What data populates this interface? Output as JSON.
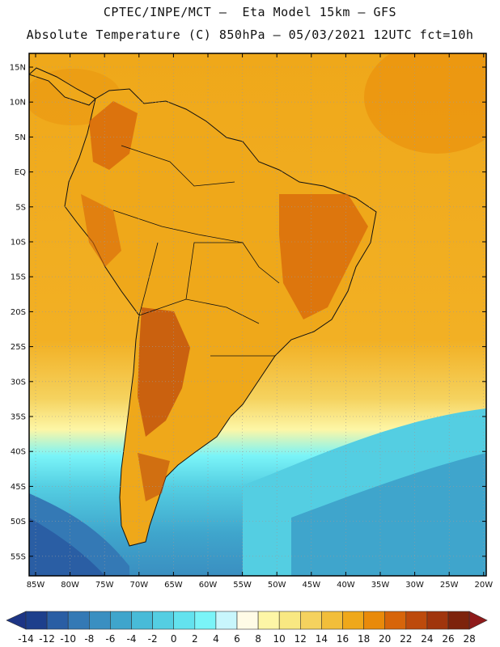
{
  "header": {
    "line1": "CPTEC/INPE/MCT –  Eta Model 15km – GFS",
    "line2": "Absolute Temperature (C) 850hPa – 05/03/2021 12UTC fct=10h"
  },
  "axes": {
    "lat_labels": [
      "15N",
      "10N",
      "5N",
      "EQ",
      "5S",
      "10S",
      "15S",
      "20S",
      "25S",
      "30S",
      "35S",
      "40S",
      "45S",
      "50S",
      "55S"
    ],
    "lon_labels": [
      "85W",
      "80W",
      "75W",
      "70W",
      "65W",
      "60W",
      "55W",
      "50W",
      "45W",
      "40W",
      "35W",
      "30W",
      "25W",
      "20W"
    ]
  },
  "colorbar": {
    "labels": [
      "-14",
      "-12",
      "-10",
      "-8",
      "-6",
      "-4",
      "-2",
      "0",
      "2",
      "4",
      "6",
      "8",
      "10",
      "12",
      "14",
      "16",
      "18",
      "20",
      "22",
      "24",
      "26",
      "28"
    ],
    "colors": [
      "#1d3f8c",
      "#2a5ea4",
      "#3479b5",
      "#3a8fc1",
      "#3fa5cc",
      "#48bbd8",
      "#54cee2",
      "#63e2ee",
      "#7af4f8",
      "#c8f6fc",
      "#fffbe6",
      "#fdf6a6",
      "#f9e882",
      "#f5d25e",
      "#f2be3a",
      "#efa81a",
      "#e98a0a",
      "#d7650a",
      "#bd4a0c",
      "#a0350d",
      "#7d230c"
    ],
    "under_color": "#1d3585",
    "over_color": "#8e1a1a"
  },
  "map_layers": {
    "land_outline": "coastline",
    "ocean_gradient": "warm-north-cold-south"
  }
}
